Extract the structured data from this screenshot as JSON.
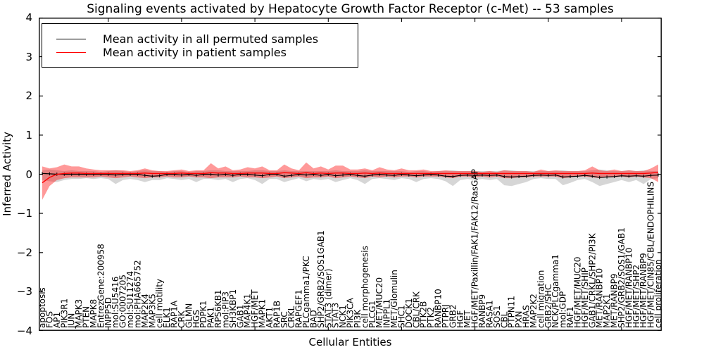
{
  "title": "Signaling events activated by Hepatocyte Growth Factor Receptor (c-Met) -- 53 samples",
  "axes": {
    "ylabel": "Inferred Activity",
    "xlabel": "Cellular Entities",
    "yticks": [
      "4",
      "3",
      "2",
      "1",
      "0",
      "−1",
      "−2",
      "−3",
      "−4"
    ],
    "ylim": [
      -4,
      4
    ]
  },
  "legend": {
    "items": [
      {
        "label": "Mean activity in all permuted samples",
        "color": "#000000"
      },
      {
        "label": "Mean activity in patient samples",
        "color": "#ff0000"
      }
    ]
  },
  "colors": {
    "permuted_line": "#000000",
    "patient_line": "#ff0000",
    "permuted_band": "rgba(0,0,0,0.16)",
    "patient_band": "rgba(255,0,0,0.40)"
  },
  "chart_data": {
    "type": "line",
    "title": "Signaling events activated by Hepatocyte Growth Factor Receptor (c-Met) -- 53 samples",
    "xlabel": "Cellular Entities",
    "ylabel": "Inferred Activity",
    "ylim": [
      -4,
      4
    ],
    "grid": false,
    "legend_position": "upper left",
    "categories": [
      "apoptosis",
      "FOS",
      "AP1",
      "PIK3R1",
      "JUN",
      "MAPK3",
      "PTEN",
      "MAPK8",
      "EntrezGene:200958",
      "INPP5D",
      "mol:SU5416",
      "GO:0007205",
      "mol:SU11274",
      "mol:PHA665752",
      "MAP2K4",
      "MAP3K5",
      "cell motility",
      "ELK1",
      "RAP1A",
      "CRK",
      "GLMN",
      "HGS",
      "PDPK1",
      "PAK1",
      "RPS6KB1",
      "mol:PIP3",
      "SH3KBP1",
      "GAB1",
      "MAP4K1",
      "HGF/MET",
      "MAPK1",
      "AKT1",
      "RAP1B",
      "SRC",
      "CRKL",
      "RAPGEF1",
      "PLCgamma1/PKC",
      "BAD",
      "SHP2/GRB2/SOS1GAB1",
      "STAT3 (dimer)",
      "STAT3",
      "NCK1",
      "PIK3CA",
      "PI3K",
      "cell morphogenesis",
      "PLCG1",
      "MET/MUC20",
      "INPPL1",
      "MET/Glomulin",
      "SHC1",
      "DOCK1",
      "CBL/CRK",
      "PTK2B",
      "PTK2",
      "RANBP10",
      "PTPRJ",
      "GRB2",
      "HGF",
      "MET",
      "HGF/MET/Paxillin/FAK1/FAK12/RasGAP",
      "RANBP9",
      "RASA1",
      "SOS1",
      "CBL",
      "PTPN11",
      "PXN",
      "HRAS",
      "MAP2K2",
      "cell migration",
      "GRB2/SHC",
      "NCK/PLCgamma1",
      "mol:GDP",
      "RAF1",
      "HGF/MET/MUC20",
      "HGF/MET/SHIP",
      "GAB1/CRKL/SHP2/PI3K",
      "MET/RANBP10",
      "MAP2K1",
      "MET/RANBP9",
      "SHP2/GRB2/SOS1/GAB1",
      "HGF/MET/RANBP10",
      "HGF/MET/SHP2",
      "HGF/MET/RANBP9",
      "HGF/MET/CIN85/CBL/ENDOPHILINS",
      "cell proliferation"
    ],
    "series": [
      {
        "key": "permuted",
        "name": "Mean activity in all permuted samples",
        "color": "#000000",
        "band_color": "rgba(0,0,0,0.16)",
        "values": [
          0.02,
          0.01,
          0.0,
          0.0,
          0.0,
          0.0,
          0.0,
          0.0,
          0.0,
          0.0,
          -0.02,
          0.0,
          0.0,
          0.0,
          -0.03,
          -0.05,
          -0.04,
          0.0,
          0.0,
          -0.02,
          0.0,
          -0.03,
          0.0,
          0.0,
          -0.02,
          0.0,
          -0.03,
          0.0,
          0.0,
          -0.02,
          -0.04,
          0.0,
          0.0,
          -0.05,
          -0.03,
          0.0,
          -0.02,
          0.0,
          -0.03,
          0.0,
          -0.04,
          -0.02,
          0.0,
          -0.03,
          -0.05,
          -0.02,
          0.0,
          -0.02,
          -0.03,
          0.0,
          -0.02,
          -0.04,
          -0.02,
          0.0,
          -0.02,
          -0.05,
          -0.06,
          -0.03,
          -0.02,
          -0.03,
          -0.02,
          -0.03,
          -0.02,
          -0.06,
          -0.07,
          -0.06,
          -0.05,
          -0.03,
          -0.02,
          -0.03,
          -0.02,
          -0.07,
          -0.06,
          -0.05,
          -0.03,
          -0.05,
          -0.08,
          -0.07,
          -0.06,
          -0.04,
          -0.05,
          -0.04,
          -0.05,
          -0.03,
          -0.02
        ],
        "band_upper": [
          0.1,
          0.12,
          0.1,
          0.08,
          0.1,
          0.08,
          0.08,
          0.08,
          0.06,
          0.08,
          0.1,
          0.08,
          0.06,
          0.08,
          0.1,
          0.08,
          0.08,
          0.06,
          0.08,
          0.08,
          0.06,
          0.08,
          0.08,
          0.1,
          0.1,
          0.08,
          0.08,
          0.08,
          0.08,
          0.1,
          0.1,
          0.08,
          0.08,
          0.1,
          0.08,
          0.08,
          0.08,
          0.08,
          0.08,
          0.08,
          0.1,
          0.08,
          0.08,
          0.08,
          0.1,
          0.08,
          0.08,
          0.08,
          0.08,
          0.08,
          0.06,
          0.08,
          0.08,
          0.06,
          0.08,
          0.08,
          0.1,
          0.08,
          0.08,
          0.08,
          0.08,
          0.08,
          0.08,
          0.1,
          0.1,
          0.08,
          0.08,
          0.08,
          0.08,
          0.08,
          0.08,
          0.1,
          0.08,
          0.08,
          0.08,
          0.1,
          0.12,
          0.1,
          0.08,
          0.08,
          0.1,
          0.08,
          0.1,
          0.08,
          0.08
        ],
        "band_lower": [
          -0.15,
          -0.18,
          -0.2,
          -0.15,
          -0.12,
          -0.12,
          -0.1,
          -0.12,
          -0.1,
          -0.12,
          -0.25,
          -0.15,
          -0.12,
          -0.15,
          -0.2,
          -0.15,
          -0.15,
          -0.1,
          -0.12,
          -0.15,
          -0.12,
          -0.2,
          -0.12,
          -0.12,
          -0.15,
          -0.12,
          -0.2,
          -0.12,
          -0.1,
          -0.15,
          -0.25,
          -0.12,
          -0.12,
          -0.2,
          -0.15,
          -0.1,
          -0.18,
          -0.12,
          -0.15,
          -0.12,
          -0.2,
          -0.15,
          -0.1,
          -0.15,
          -0.25,
          -0.12,
          -0.1,
          -0.12,
          -0.15,
          -0.1,
          -0.12,
          -0.2,
          -0.12,
          -0.1,
          -0.12,
          -0.18,
          -0.3,
          -0.15,
          -0.12,
          -0.15,
          -0.12,
          -0.15,
          -0.12,
          -0.28,
          -0.3,
          -0.25,
          -0.2,
          -0.12,
          -0.1,
          -0.12,
          -0.12,
          -0.28,
          -0.22,
          -0.15,
          -0.12,
          -0.2,
          -0.3,
          -0.25,
          -0.2,
          -0.15,
          -0.2,
          -0.15,
          -0.25,
          -0.12,
          -0.1
        ]
      },
      {
        "key": "patient",
        "name": "Mean activity in patient samples",
        "color": "#ff0000",
        "band_color": "rgba(255,0,0,0.40)",
        "values": [
          -0.22,
          -0.08,
          0.0,
          0.02,
          0.03,
          0.03,
          0.02,
          0.02,
          0.02,
          0.02,
          0.02,
          0.02,
          0.02,
          0.02,
          0.03,
          0.02,
          0.02,
          0.02,
          0.02,
          0.03,
          0.02,
          0.02,
          0.02,
          0.04,
          0.03,
          0.03,
          0.02,
          0.02,
          0.03,
          0.03,
          0.03,
          0.02,
          0.02,
          0.04,
          0.03,
          0.02,
          0.04,
          0.02,
          0.03,
          0.02,
          0.03,
          0.03,
          0.02,
          0.02,
          0.03,
          0.02,
          0.03,
          0.02,
          0.02,
          0.02,
          0.02,
          0.02,
          0.02,
          0.02,
          0.02,
          0.02,
          0.02,
          0.02,
          0.02,
          0.02,
          0.02,
          0.02,
          0.02,
          0.02,
          0.02,
          0.02,
          0.02,
          0.02,
          0.02,
          0.02,
          0.02,
          0.02,
          0.02,
          0.02,
          0.02,
          0.03,
          0.02,
          0.02,
          0.02,
          0.02,
          0.02,
          0.02,
          0.02,
          0.03,
          0.05
        ],
        "band_upper": [
          0.2,
          0.15,
          0.18,
          0.25,
          0.2,
          0.2,
          0.15,
          0.12,
          0.1,
          0.1,
          0.1,
          0.1,
          0.08,
          0.1,
          0.15,
          0.1,
          0.08,
          0.08,
          0.1,
          0.12,
          0.08,
          0.1,
          0.1,
          0.28,
          0.15,
          0.2,
          0.1,
          0.12,
          0.18,
          0.15,
          0.2,
          0.1,
          0.1,
          0.25,
          0.15,
          0.1,
          0.3,
          0.15,
          0.2,
          0.12,
          0.22,
          0.22,
          0.12,
          0.12,
          0.15,
          0.1,
          0.18,
          0.12,
          0.1,
          0.15,
          0.1,
          0.1,
          0.12,
          0.08,
          0.08,
          0.1,
          0.08,
          0.08,
          0.08,
          0.08,
          0.06,
          0.08,
          0.06,
          0.1,
          0.08,
          0.08,
          0.08,
          0.06,
          0.12,
          0.08,
          0.1,
          0.08,
          0.08,
          0.08,
          0.1,
          0.2,
          0.1,
          0.08,
          0.12,
          0.08,
          0.1,
          0.08,
          0.08,
          0.15,
          0.25
        ],
        "band_lower": [
          -0.65,
          -0.3,
          -0.15,
          -0.1,
          -0.08,
          -0.08,
          -0.08,
          -0.08,
          -0.06,
          -0.08,
          -0.1,
          -0.08,
          -0.06,
          -0.08,
          -0.1,
          -0.08,
          -0.08,
          -0.06,
          -0.08,
          -0.08,
          -0.06,
          -0.08,
          -0.08,
          -0.1,
          -0.08,
          -0.08,
          -0.08,
          -0.06,
          -0.08,
          -0.08,
          -0.1,
          -0.08,
          -0.06,
          -0.1,
          -0.08,
          -0.06,
          -0.1,
          -0.08,
          -0.08,
          -0.06,
          -0.1,
          -0.08,
          -0.06,
          -0.08,
          -0.1,
          -0.06,
          -0.08,
          -0.06,
          -0.08,
          -0.06,
          -0.06,
          -0.08,
          -0.06,
          -0.06,
          -0.06,
          -0.08,
          -0.1,
          -0.06,
          -0.06,
          -0.08,
          -0.06,
          -0.08,
          -0.06,
          -0.1,
          -0.1,
          -0.08,
          -0.08,
          -0.06,
          -0.06,
          -0.06,
          -0.06,
          -0.1,
          -0.08,
          -0.06,
          -0.06,
          -0.08,
          -0.1,
          -0.08,
          -0.08,
          -0.06,
          -0.08,
          -0.06,
          -0.08,
          -0.1,
          -0.2
        ]
      }
    ]
  }
}
